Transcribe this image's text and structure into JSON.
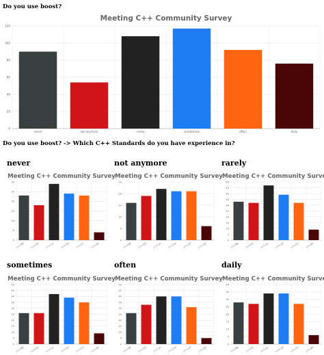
{
  "page": {
    "question1": "Do you use boost?",
    "question2": "Do you use boost? -> Which C++ Standards do you have experience in?"
  },
  "colors": {
    "never": "#3a3f3f",
    "not anymore": "#d01417",
    "rarely": "#222222",
    "sometimes": "#1f7df4",
    "often": "#ff6410",
    "daily": "#4a0507"
  },
  "std_colors": [
    "#3a3f3f",
    "#d01417",
    "#222222",
    "#1f7df4",
    "#ff6410",
    "#4a0507"
  ],
  "chart_data": [
    {
      "id": "main",
      "type": "bar",
      "title": "Meeting C++ Community Survey",
      "categories": [
        "never",
        "not anymore",
        "rarely",
        "sometimes",
        "often",
        "daily"
      ],
      "values": [
        90,
        54,
        108,
        117,
        92,
        76
      ],
      "ylim": [
        0,
        120
      ],
      "yticks": [
        0,
        20,
        40,
        60,
        80,
        100,
        120
      ],
      "grid": true
    },
    {
      "id": "never",
      "type": "bar",
      "label": "never",
      "title": "Meeting C++ Community Survey",
      "categories": [
        "c++98",
        "c++03",
        "c++11",
        "c++14",
        "c++17",
        "c++20"
      ],
      "values": [
        23,
        18,
        29,
        24,
        23,
        4
      ],
      "ylim": [
        0,
        30
      ],
      "yticks": [
        0,
        5,
        10,
        15,
        20,
        25,
        30
      ]
    },
    {
      "id": "not-anymore",
      "type": "bar",
      "label": "not anymore",
      "title": "Meeting C++ Community Survey",
      "categories": [
        "c++98",
        "c++03",
        "c++11",
        "c++14",
        "c++17",
        "c++20"
      ],
      "values": [
        16,
        19,
        22,
        21,
        21,
        6
      ],
      "ylim": [
        0,
        25
      ],
      "yticks": [
        0,
        5,
        10,
        15,
        20,
        25
      ]
    },
    {
      "id": "rarely",
      "type": "bar",
      "label": "rarely",
      "title": "Meeting C++ Community Survey",
      "categories": [
        "c++98",
        "c++03",
        "c++11",
        "c++14",
        "c++17",
        "c++20"
      ],
      "values": [
        33,
        32,
        47,
        39,
        32,
        9
      ],
      "ylim": [
        0,
        50
      ],
      "yticks": [
        0,
        5,
        10,
        15,
        20,
        25,
        30,
        35,
        40,
        45,
        50
      ]
    },
    {
      "id": "sometimes",
      "type": "bar",
      "label": "sometimes",
      "title": "Meeting C++ Community Survey",
      "categories": [
        "c++98",
        "c++03",
        "c++11",
        "c++14",
        "c++17",
        "c++20"
      ],
      "values": [
        26,
        26,
        42,
        39,
        35,
        9
      ],
      "ylim": [
        0,
        50
      ],
      "yticks": [
        0,
        5,
        10,
        15,
        20,
        25,
        30,
        35,
        40,
        45,
        50
      ]
    },
    {
      "id": "often",
      "type": "bar",
      "label": "often",
      "title": "Meeting C++ Community Survey",
      "categories": [
        "c++98",
        "c++03",
        "c++11",
        "c++14",
        "c++17",
        "c++20"
      ],
      "values": [
        26,
        33,
        40,
        40,
        31,
        5
      ],
      "ylim": [
        0,
        50
      ],
      "yticks": [
        0,
        5,
        10,
        15,
        20,
        25,
        30,
        35,
        40,
        45,
        50
      ]
    },
    {
      "id": "daily",
      "type": "bar",
      "label": "daily",
      "title": "Meeting C++ Community Survey",
      "categories": [
        "c++98",
        "c++03",
        "c++11",
        "c++14",
        "c++17",
        "c++20"
      ],
      "values": [
        28,
        27,
        34,
        34,
        27,
        6
      ],
      "ylim": [
        0,
        40
      ],
      "yticks": [
        0,
        5,
        10,
        15,
        20,
        25,
        30,
        35,
        40
      ]
    }
  ]
}
